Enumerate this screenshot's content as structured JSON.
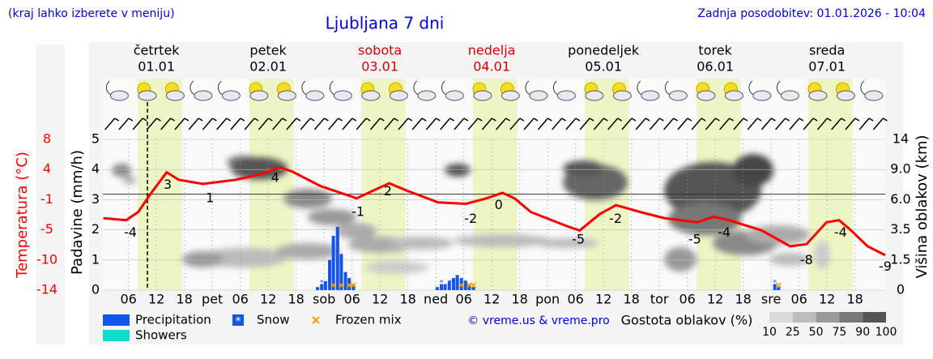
{
  "chart_data": {
    "type": "meteogram",
    "title": "Ljubljana 7 dni",
    "subtitle": "(kraj lahko izberete v meniju)",
    "updated": "Zadnja posodobitev: 01.01.2026 - 10:04",
    "credit": "© vreme.us & vreme.pro",
    "xlim": [
      0.5,
      168.5
    ],
    "xticks": [
      {
        "value": 6,
        "label": "06"
      },
      {
        "value": 12,
        "label": "12"
      },
      {
        "value": 18,
        "label": "18"
      },
      {
        "value": 24,
        "label": "pet"
      },
      {
        "value": 30,
        "label": "06"
      },
      {
        "value": 36,
        "label": "12"
      },
      {
        "value": 42,
        "label": "18"
      },
      {
        "value": 48,
        "label": "sob"
      },
      {
        "value": 54,
        "label": "06"
      },
      {
        "value": 60,
        "label": "12"
      },
      {
        "value": 66,
        "label": "18"
      },
      {
        "value": 72,
        "label": "ned"
      },
      {
        "value": 78,
        "label": "06"
      },
      {
        "value": 84,
        "label": "12"
      },
      {
        "value": 90,
        "label": "18"
      },
      {
        "value": 96,
        "label": "pon"
      },
      {
        "value": 102,
        "label": "06"
      },
      {
        "value": 108,
        "label": "12"
      },
      {
        "value": 114,
        "label": "18"
      },
      {
        "value": 120,
        "label": "tor"
      },
      {
        "value": 126,
        "label": "06"
      },
      {
        "value": 132,
        "label": "12"
      },
      {
        "value": 138,
        "label": "18"
      },
      {
        "value": 144,
        "label": "sre"
      },
      {
        "value": 150,
        "label": "06"
      },
      {
        "value": 156,
        "label": "12"
      },
      {
        "value": 162,
        "label": "18"
      }
    ],
    "days": [
      {
        "name": "četrtek",
        "date": "01.01",
        "color": "#000000"
      },
      {
        "name": "petek",
        "date": "02.01",
        "color": "#000000"
      },
      {
        "name": "sobota",
        "date": "03.01",
        "color": "#dd0000"
      },
      {
        "name": "nedelja",
        "date": "04.01",
        "color": "#dd0000"
      },
      {
        "name": "ponedeljek",
        "date": "05.01",
        "color": "#000000"
      },
      {
        "name": "torek",
        "date": "06.01",
        "color": "#000000"
      },
      {
        "name": "sreda",
        "date": "07.01",
        "color": "#000000"
      }
    ],
    "daylight": [
      8,
      17.5
    ],
    "now": 10.07,
    "ylabel": "Padavine (mm/h)",
    "ylim": [
      0,
      5
    ],
    "yticks": [
      0,
      1,
      2,
      3,
      4,
      5
    ],
    "grid": true,
    "temperature": {
      "ylabel": "Temperatura (°C)",
      "color": "#ff0000",
      "ylim": [
        -14,
        8
      ],
      "yticks": [
        -14,
        {
          "value": -9.6,
          "label": "-10"
        },
        {
          "value": -5.2,
          "label": "-5"
        },
        {
          "value": -0.8,
          "label": "-1"
        },
        {
          "value": 3.6,
          "label": "4"
        },
        8
      ],
      "x": [
        0.6,
        5.5,
        8.1,
        10.7,
        14.2,
        16.8,
        22,
        29,
        34.2,
        38.6,
        41.2,
        47.2,
        55,
        58.5,
        62,
        65.5,
        72.5,
        78.5,
        82.9,
        86.3,
        88.9,
        92.4,
        100.3,
        102.9,
        107.2,
        110.7,
        115.9,
        121.1,
        128.1,
        131.6,
        135,
        142,
        148.1,
        151.6,
        155.9,
        158.6,
        161.2,
        164.7,
        168.5
      ],
      "values": [
        -3.5,
        -3.8,
        -2.6,
        0,
        3.2,
        2.1,
        1.5,
        2.1,
        2.9,
        3.9,
        3.3,
        1.2,
        -0.6,
        0.5,
        1.6,
        0.6,
        -1.2,
        -1.4,
        -0.6,
        0.2,
        -0.6,
        -2.6,
        -4.7,
        -5.3,
        -2.9,
        -1.6,
        -2.6,
        -3.5,
        -4.1,
        -3.3,
        -3.8,
        -5.3,
        -7.6,
        -7.3,
        -4.1,
        -3.8,
        -5.3,
        -7.6,
        -8.9
      ],
      "labels": {
        "x": [
          6.4,
          14.4,
          23.5,
          37.5,
          55.3,
          61.7,
          79.5,
          85.5,
          102.6,
          110.6,
          127.6,
          133.9,
          151.6,
          158.9,
          168.5
        ],
        "values": [
          -4,
          3,
          1,
          4,
          -1,
          2,
          -2,
          0,
          -5,
          -2,
          -5,
          -4,
          -8,
          -4,
          -9
        ]
      }
    },
    "y2label": "Višina oblakov (km)",
    "y2ticks": [
      0,
      1.5,
      3.5,
      {
        "value": 6,
        "label": "6.0"
      },
      {
        "value": 9,
        "label": "9.0"
      },
      14
    ],
    "series": [
      {
        "name": "Precipitation",
        "color": "#1155ee",
        "x": [
          46.6,
          47.5,
          48.3,
          49.2,
          50,
          50.9,
          51.7,
          52.6,
          53.4,
          54.3,
          72.3,
          73.2,
          74,
          74.9,
          75.8,
          76.6,
          77.5,
          78.4,
          79.2,
          80.1,
          144.8,
          145.6
        ],
        "values": [
          0.1,
          0.2,
          0.3,
          1.0,
          1.8,
          2.1,
          1.2,
          0.6,
          0.4,
          0.2,
          0.1,
          0.2,
          0.2,
          0.3,
          0.4,
          0.5,
          0.4,
          0.3,
          0.2,
          0.1,
          0.2,
          0.1
        ]
      },
      {
        "name": "Showers",
        "color": "#11ddcc",
        "x": [],
        "values": []
      },
      {
        "name": "Snow",
        "color": "#1155ee",
        "x": [
          47.5,
          49.2,
          50.9,
          52.6,
          73.2,
          75,
          76.6,
          78.4,
          144.8
        ]
      },
      {
        "name": "Frozen mix",
        "color": "#ff9900",
        "x": [
          50,
          51.7,
          53.4,
          54.3,
          77.5,
          79.2,
          80.1,
          145.6
        ]
      }
    ],
    "cloud_scale": {
      "title": "Gostota oblakov (%)",
      "ticks": [
        10,
        25,
        50,
        75,
        90,
        100
      ],
      "colors": [
        "#dadada",
        "#bdbdbd",
        "#9a9a9a",
        "#777777",
        "#555555"
      ]
    }
  }
}
